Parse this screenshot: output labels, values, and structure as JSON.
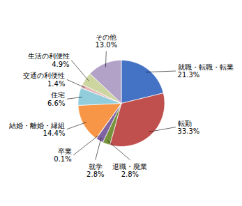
{
  "chart_data": {
    "type": "pie",
    "categories": [
      "就職・転職・転業",
      "転勤",
      "退職・廃業",
      "就学",
      "卒業",
      "結婚・離婚・縁組",
      "住宅",
      "交通の利便性",
      "生活の利便性",
      "その他"
    ],
    "values": [
      21.3,
      33.3,
      2.8,
      2.8,
      0.1,
      14.4,
      6.6,
      1.4,
      4.9,
      13.0
    ],
    "value_labels": [
      "21.3%",
      "33.3%",
      "2.8%",
      "2.8%",
      "0.1%",
      "14.4%",
      "6.6%",
      "1.4%",
      "4.9%",
      "13.0%"
    ],
    "colors": [
      "#4472C4",
      "#C0504D",
      "#76933C",
      "#8064A2",
      "#4BACC6",
      "#F79646",
      "#92CDDC",
      "#E6B9B8",
      "#CDD5A0",
      "#B3A2C7"
    ],
    "data_labels": true
  }
}
